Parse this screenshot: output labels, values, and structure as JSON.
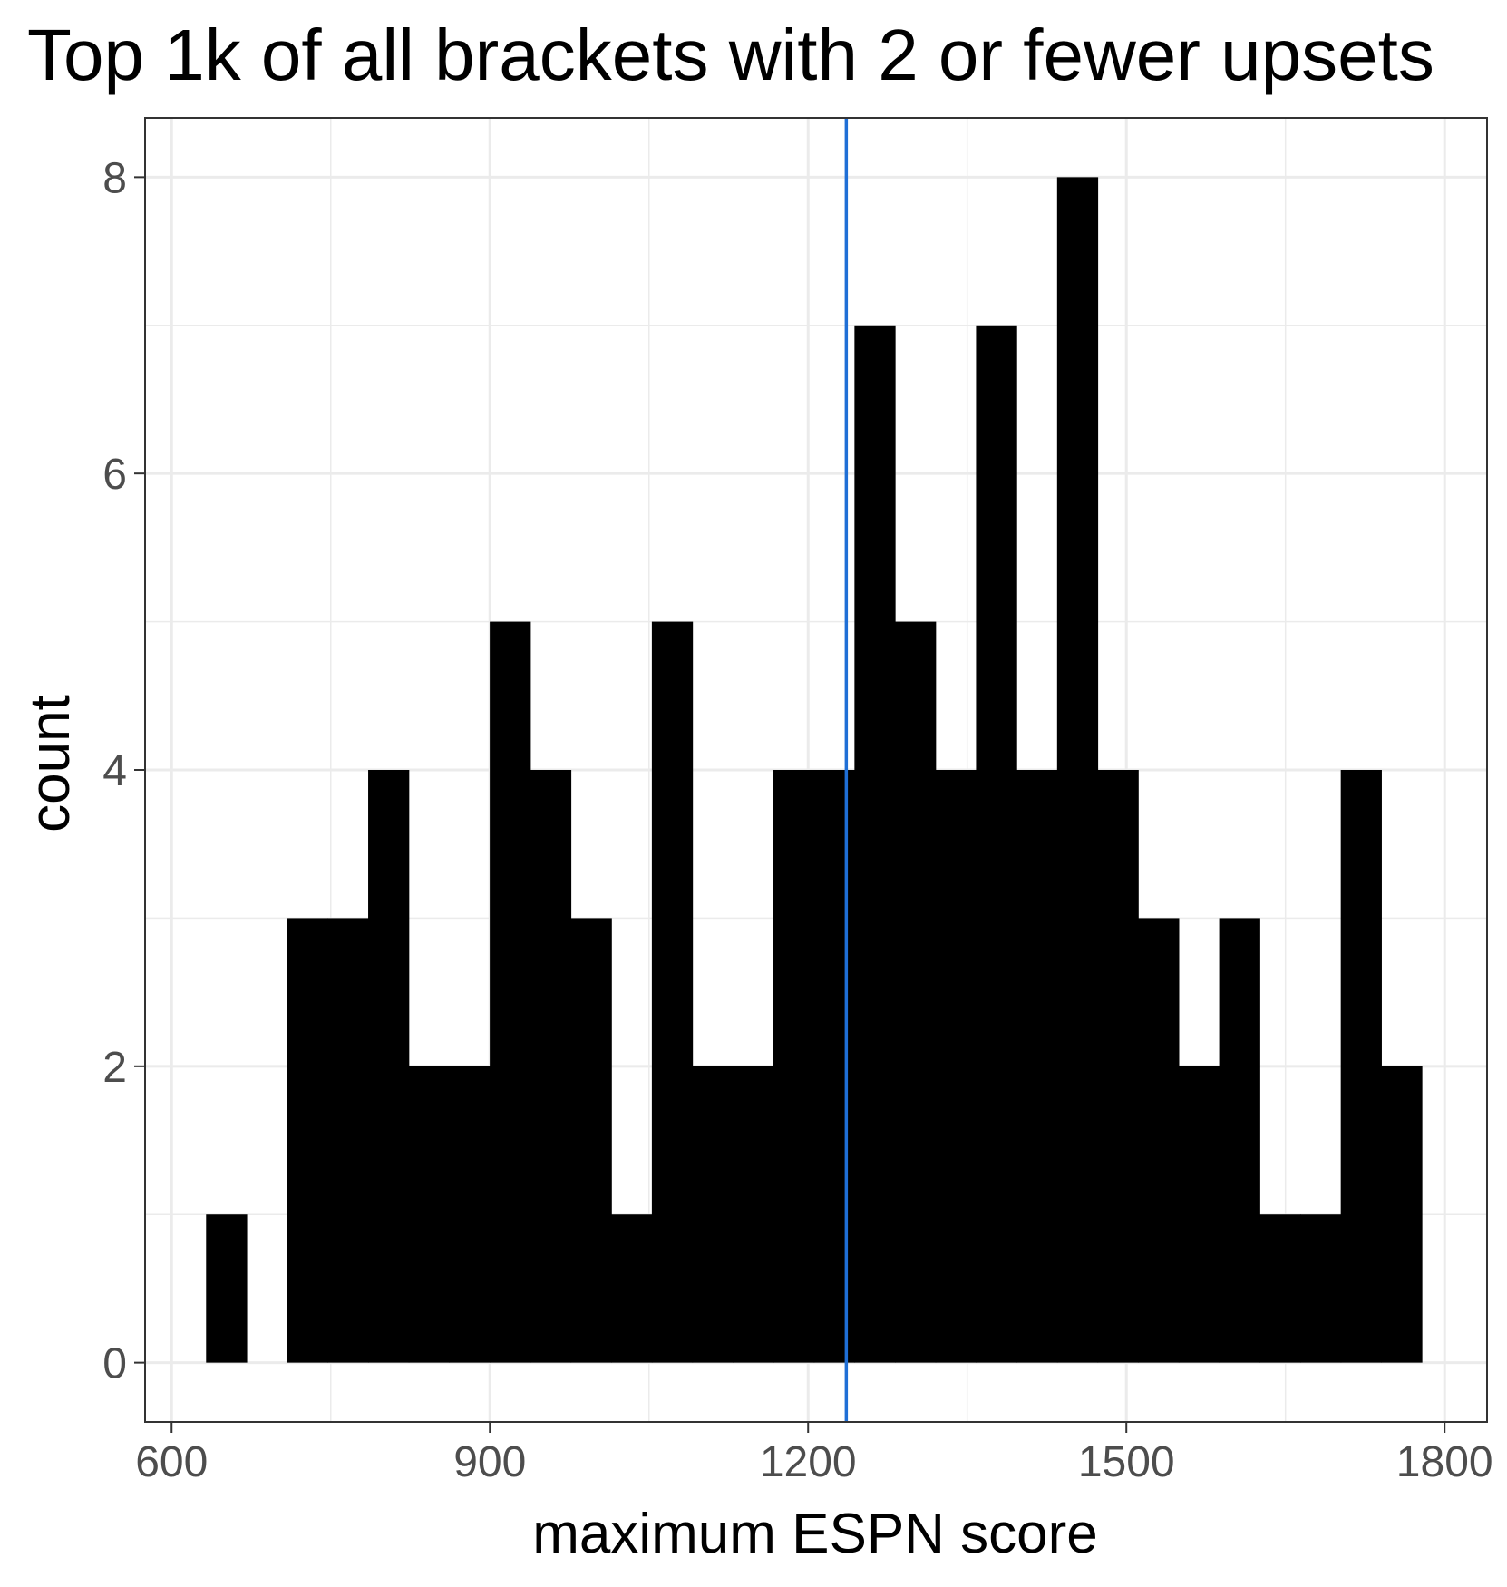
{
  "chart_data": {
    "type": "bar",
    "subtype": "histogram",
    "title": "Top 1k of all brackets with 2 or fewer upsets",
    "xlabel": "maximum ESPN score",
    "ylabel": "count",
    "xlim": [
      575,
      1840
    ],
    "ylim": [
      -0.4,
      8.4
    ],
    "x_ticks": [
      600,
      900,
      1200,
      1500,
      1800
    ],
    "y_ticks": [
      0,
      2,
      4,
      6,
      8
    ],
    "x_minor_ticks": [
      750,
      1050,
      1350,
      1650
    ],
    "y_minor_ticks": [
      1,
      3,
      5,
      7
    ],
    "grid": true,
    "bin_width": 38.2,
    "bins": [
      {
        "start": 632.5,
        "end": 670.7,
        "count": 1
      },
      {
        "start": 670.7,
        "end": 708.9,
        "count": 0
      },
      {
        "start": 708.9,
        "end": 747.1,
        "count": 3
      },
      {
        "start": 747.1,
        "end": 785.3,
        "count": 3
      },
      {
        "start": 785.3,
        "end": 823.5,
        "count": 4
      },
      {
        "start": 823.5,
        "end": 861.7,
        "count": 2
      },
      {
        "start": 861.7,
        "end": 899.9,
        "count": 2
      },
      {
        "start": 899.9,
        "end": 938.1,
        "count": 5
      },
      {
        "start": 938.1,
        "end": 976.3,
        "count": 4
      },
      {
        "start": 976.3,
        "end": 1014.5,
        "count": 3
      },
      {
        "start": 1014.5,
        "end": 1052.7,
        "count": 1
      },
      {
        "start": 1052.7,
        "end": 1090.9,
        "count": 5
      },
      {
        "start": 1090.9,
        "end": 1129.1,
        "count": 2
      },
      {
        "start": 1129.1,
        "end": 1167.3,
        "count": 2
      },
      {
        "start": 1167.3,
        "end": 1205.5,
        "count": 4
      },
      {
        "start": 1205.5,
        "end": 1243.7,
        "count": 4
      },
      {
        "start": 1243.7,
        "end": 1281.9,
        "count": 7
      },
      {
        "start": 1281.9,
        "end": 1320.1,
        "count": 5
      },
      {
        "start": 1320.1,
        "end": 1358.3,
        "count": 4
      },
      {
        "start": 1358.3,
        "end": 1396.5,
        "count": 7
      },
      {
        "start": 1396.5,
        "end": 1434.7,
        "count": 4
      },
      {
        "start": 1434.7,
        "end": 1472.9,
        "count": 8
      },
      {
        "start": 1472.9,
        "end": 1511.1,
        "count": 4
      },
      {
        "start": 1511.1,
        "end": 1549.3,
        "count": 3
      },
      {
        "start": 1549.3,
        "end": 1587.5,
        "count": 2
      },
      {
        "start": 1587.5,
        "end": 1625.7,
        "count": 3
      },
      {
        "start": 1625.7,
        "end": 1663.9,
        "count": 1
      },
      {
        "start": 1663.9,
        "end": 1702.1,
        "count": 1
      },
      {
        "start": 1702.1,
        "end": 1740.3,
        "count": 4
      },
      {
        "start": 1740.3,
        "end": 1778.5,
        "count": 2
      }
    ],
    "vline": {
      "x": 1236,
      "color": "#1f6fd6"
    },
    "bar_color": "#000000",
    "panel_border_color": "#333333",
    "grid_color": "#ebebeb"
  }
}
